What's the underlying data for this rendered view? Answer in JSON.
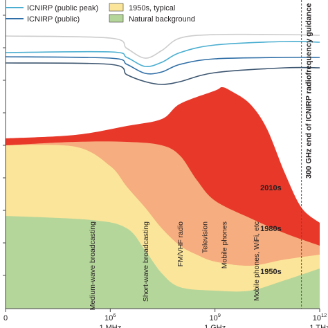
{
  "chart_data": {
    "type": "area",
    "x_scale": "log",
    "xlim": [
      1000,
      1000000000000
    ],
    "x_ticks": [
      {
        "value": 1000,
        "base": "0",
        "exp": "",
        "sub": ""
      },
      {
        "value": 1000000,
        "base": "10",
        "exp": "6",
        "sub": "1 MHz"
      },
      {
        "value": 1000000000,
        "base": "10",
        "exp": "9",
        "sub": "1 GHz"
      },
      {
        "value": 1000000000000,
        "base": "10",
        "exp": "12",
        "sub": "1 THz"
      }
    ],
    "legend": {
      "placement": "top-left",
      "items": [
        {
          "label": "ICNIRP (public peak)",
          "kind": "line",
          "color": "#4aaed0"
        },
        {
          "label": "ICNIRP (public)",
          "kind": "line",
          "color": "#2f6ea6"
        },
        {
          "label": "1950s, typical",
          "kind": "patch",
          "color": "#fbe59a"
        },
        {
          "label": "Natural background",
          "kind": "patch",
          "color": "#b5d69a"
        }
      ]
    },
    "areas": [
      {
        "name": "2010s",
        "color": "#e8382a",
        "points": [
          [
            1000,
            200
          ],
          [
            100000,
            195
          ],
          [
            3000000,
            182
          ],
          [
            30000000,
            172
          ],
          [
            100000000,
            150
          ],
          [
            1000000000,
            131
          ],
          [
            1600000000,
            126
          ],
          [
            3000000000,
            132
          ],
          [
            10000000000,
            150
          ],
          [
            30000000000,
            185
          ],
          [
            100000000000,
            250
          ],
          [
            300000000000,
            300
          ],
          [
            1000000000000,
            322
          ]
        ]
      },
      {
        "name": "1980s",
        "color": "#f6ad7f",
        "points": [
          [
            1000,
            210
          ],
          [
            100000,
            205
          ],
          [
            3000000,
            205
          ],
          [
            30000000,
            210
          ],
          [
            100000000,
            225
          ],
          [
            300000000,
            260
          ],
          [
            1000000000,
            290
          ],
          [
            10000000000,
            315
          ],
          [
            100000000000,
            337
          ],
          [
            1000000000000,
            355
          ]
        ]
      },
      {
        "name": "1950s",
        "color": "#fbe59a",
        "points": [
          [
            1000,
            210
          ],
          [
            100000,
            212
          ],
          [
            1000000,
            240
          ],
          [
            3000000,
            270
          ],
          [
            10000000,
            300
          ],
          [
            30000000,
            330
          ],
          [
            100000000,
            355
          ],
          [
            300000000,
            368
          ],
          [
            1000000000,
            378
          ],
          [
            10000000000,
            384
          ],
          [
            100000000000,
            375
          ],
          [
            1000000000000,
            368
          ]
        ]
      },
      {
        "name": "Natural background",
        "color": "#b5d69a",
        "points": [
          [
            1000,
            312
          ],
          [
            300000,
            318
          ],
          [
            3000000,
            330
          ],
          [
            10000000,
            362
          ],
          [
            30000000,
            395
          ],
          [
            100000000,
            415
          ],
          [
            1000000000,
            420
          ],
          [
            10000000000,
            420
          ],
          [
            100000000000,
            405
          ],
          [
            1000000000000,
            388
          ]
        ]
      }
    ],
    "lines": [
      {
        "name": "",
        "color": "#cccccc",
        "points": [
          [
            1000,
            52
          ],
          [
            1000000,
            55
          ],
          [
            3000000,
            70
          ],
          [
            10000000,
            84
          ],
          [
            30000000,
            73
          ],
          [
            100000000,
            55
          ],
          [
            1000000000,
            50
          ],
          [
            100000000000,
            50
          ],
          [
            1000000000000,
            51
          ]
        ]
      },
      {
        "name": "ICNIRP (public peak)",
        "color": "#4aaed0",
        "points": [
          [
            1000,
            76
          ],
          [
            1000000,
            75
          ],
          [
            3000000,
            83
          ],
          [
            10000000,
            96
          ],
          [
            30000000,
            90
          ],
          [
            100000000,
            76
          ],
          [
            1000000000,
            65
          ],
          [
            100000000000,
            60
          ],
          [
            1000000000000,
            61
          ]
        ]
      },
      {
        "name": "ICNIRP (public)",
        "color": "#2f6ea6",
        "points": [
          [
            1000,
            82
          ],
          [
            1000000,
            84
          ],
          [
            3000000,
            93
          ],
          [
            10000000,
            106
          ],
          [
            30000000,
            104
          ],
          [
            100000000,
            93
          ],
          [
            1000000000,
            85
          ],
          [
            100000000000,
            83
          ],
          [
            1000000000000,
            83
          ]
        ]
      },
      {
        "name": "",
        "color": "#3d5670",
        "points": [
          [
            1000,
            91
          ],
          [
            1000000,
            93
          ],
          [
            3000000,
            108
          ],
          [
            10000000,
            118
          ],
          [
            30000000,
            122
          ],
          [
            100000000,
            118
          ],
          [
            1000000000,
            105
          ],
          [
            100000000000,
            98
          ],
          [
            1000000000000,
            98
          ]
        ]
      }
    ],
    "band_labels": [
      {
        "text": "2010s",
        "x": 40000000000,
        "y": 275
      },
      {
        "text": "1980s",
        "x": 40000000000,
        "y": 334
      },
      {
        "text": "1950s",
        "x": 40000000000,
        "y": 396
      }
    ],
    "source_labels": [
      {
        "text": "Medium-wave broadcasting",
        "x": 300000
      },
      {
        "text": "Short-wave broadcasting",
        "x": 10000000
      },
      {
        "text": "FM/VHF radio",
        "x": 100000000
      },
      {
        "text": "Television",
        "x": 500000000
      },
      {
        "text": "Mobile phones",
        "x": 1800000000
      },
      {
        "text": "Mobile phones, WiFi, etc",
        "x": 15000000000
      }
    ],
    "guidance": {
      "text": "300 GHz end of ICNIRP radiofrequency guidance",
      "x": 300000000000
    }
  }
}
